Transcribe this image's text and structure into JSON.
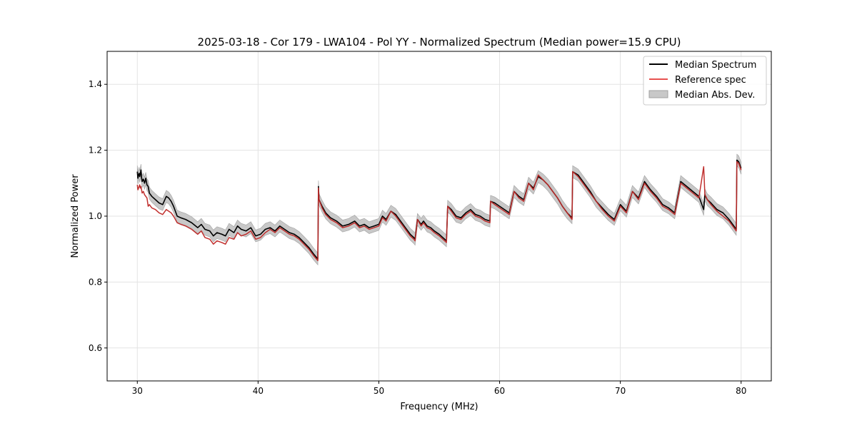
{
  "chart_data": {
    "type": "line",
    "title": "2025-03-18 - Cor 179 - LWA104 - Pol YY - Normalized Spectrum (Median power=15.9 CPU)",
    "xlabel": "Frequency (MHz)",
    "ylabel": "Normalized Power",
    "xlim": [
      27.5,
      82.5
    ],
    "ylim": [
      0.5,
      1.5
    ],
    "x_ticks": [
      30,
      40,
      50,
      60,
      70,
      80
    ],
    "y_ticks": [
      0.6,
      0.8,
      1.0,
      1.2,
      1.4
    ],
    "x_tick_labels": [
      "30",
      "40",
      "50",
      "60",
      "70",
      "80"
    ],
    "y_tick_labels": [
      "0.6",
      "0.8",
      "1.0",
      "1.2",
      "1.4"
    ],
    "grid": true,
    "legend_position": "top-right",
    "colors": {
      "median": "#000000",
      "reference": "#e8514f",
      "overlap": "#8b0000",
      "band_fill": "#c8c8c8",
      "band_edge": "#a0a0a0"
    },
    "series": [
      {
        "name": "Median Spectrum",
        "kind": "line",
        "x": [
          30.0,
          30.05,
          30.1,
          30.15,
          30.2,
          30.25,
          30.3,
          30.35,
          30.4,
          30.5,
          30.6,
          30.7,
          30.8,
          30.9,
          31.0,
          31.2,
          31.5,
          31.8,
          32.1,
          32.4,
          32.6,
          32.8,
          33.0,
          33.3,
          33.6,
          34.0,
          34.5,
          35.0,
          35.3,
          35.6,
          36.0,
          36.3,
          36.6,
          37.0,
          37.3,
          37.6,
          38.0,
          38.3,
          38.6,
          39.0,
          39.4,
          39.8,
          40.2,
          40.6,
          41.0,
          41.4,
          41.8,
          42.2,
          42.6,
          43.0,
          43.4,
          43.8,
          44.2,
          44.6,
          44.95,
          45.0,
          45.05,
          45.3,
          45.6,
          46.0,
          46.5,
          47.0,
          47.5,
          48.0,
          48.4,
          48.8,
          49.2,
          49.6,
          50.0,
          50.3,
          50.6,
          51.0,
          51.4,
          51.8,
          52.2,
          52.6,
          52.9,
          53.0,
          53.2,
          53.5,
          53.7,
          54.0,
          54.3,
          54.6,
          55.0,
          55.3,
          55.6,
          55.7,
          56.0,
          56.4,
          56.8,
          57.2,
          57.6,
          58.0,
          58.4,
          58.8,
          59.2,
          59.25,
          59.6,
          60.0,
          60.4,
          60.8,
          61.2,
          61.6,
          62.0,
          62.4,
          62.8,
          63.2,
          63.6,
          64.0,
          64.4,
          64.8,
          65.2,
          65.6,
          66.0,
          66.05,
          66.5,
          67.0,
          67.5,
          68.0,
          68.5,
          69.0,
          69.5,
          70.0,
          70.5,
          71.0,
          71.5,
          72.0,
          72.5,
          73.0,
          73.5,
          74.0,
          74.5,
          75.0,
          75.5,
          76.0,
          76.5,
          76.9,
          77.0,
          77.2,
          77.5,
          78.0,
          78.5,
          79.0,
          79.6,
          79.65,
          79.8,
          80.0
        ],
        "y": [
          1.135,
          1.115,
          1.125,
          1.13,
          1.12,
          1.128,
          1.14,
          1.118,
          1.105,
          1.112,
          1.1,
          1.115,
          1.095,
          1.09,
          1.07,
          1.06,
          1.05,
          1.04,
          1.035,
          1.06,
          1.055,
          1.045,
          1.03,
          1.0,
          0.995,
          0.99,
          0.98,
          0.965,
          0.975,
          0.96,
          0.955,
          0.94,
          0.95,
          0.945,
          0.94,
          0.96,
          0.95,
          0.97,
          0.96,
          0.955,
          0.965,
          0.94,
          0.945,
          0.96,
          0.965,
          0.955,
          0.97,
          0.96,
          0.95,
          0.945,
          0.935,
          0.92,
          0.905,
          0.885,
          0.87,
          1.09,
          1.05,
          1.03,
          1.01,
          0.995,
          0.985,
          0.97,
          0.975,
          0.985,
          0.97,
          0.975,
          0.965,
          0.97,
          0.975,
          1.0,
          0.99,
          1.015,
          1.005,
          0.985,
          0.965,
          0.945,
          0.935,
          0.93,
          0.99,
          0.975,
          0.985,
          0.97,
          0.965,
          0.955,
          0.945,
          0.935,
          0.925,
          1.03,
          1.02,
          1.0,
          0.995,
          1.01,
          1.02,
          1.005,
          1.0,
          0.99,
          0.985,
          1.045,
          1.04,
          1.03,
          1.02,
          1.01,
          1.075,
          1.06,
          1.05,
          1.1,
          1.085,
          1.12,
          1.11,
          1.095,
          1.075,
          1.055,
          1.03,
          1.01,
          0.995,
          1.135,
          1.125,
          1.1,
          1.075,
          1.045,
          1.025,
          1.005,
          0.99,
          1.035,
          1.015,
          1.075,
          1.055,
          1.105,
          1.08,
          1.06,
          1.035,
          1.025,
          1.01,
          1.105,
          1.09,
          1.075,
          1.06,
          1.02,
          1.065,
          1.05,
          1.04,
          1.02,
          1.01,
          0.99,
          0.96,
          1.17,
          1.165,
          1.145
        ]
      },
      {
        "name": "Reference spec",
        "kind": "line",
        "x": [
          30.0,
          30.05,
          30.1,
          30.15,
          30.2,
          30.25,
          30.3,
          30.35,
          30.4,
          30.5,
          30.6,
          30.7,
          30.8,
          30.9,
          31.0,
          31.2,
          31.5,
          31.8,
          32.1,
          32.4,
          32.6,
          32.8,
          33.0,
          33.3,
          33.6,
          34.0,
          34.5,
          35.0,
          35.3,
          35.6,
          36.0,
          36.3,
          36.6,
          37.0,
          37.3,
          37.6,
          38.0,
          38.3,
          38.6,
          39.0,
          39.4,
          39.8,
          40.2,
          40.6,
          41.0,
          41.4,
          41.8,
          42.2,
          42.6,
          43.0,
          43.4,
          43.8,
          44.2,
          44.6,
          44.95,
          45.0,
          45.05,
          45.3,
          45.6,
          46.0,
          46.5,
          47.0,
          47.5,
          48.0,
          48.4,
          48.8,
          49.2,
          49.6,
          50.0,
          50.3,
          50.6,
          51.0,
          51.4,
          51.8,
          52.2,
          52.6,
          52.9,
          53.0,
          53.2,
          53.5,
          53.7,
          54.0,
          54.3,
          54.6,
          55.0,
          55.3,
          55.6,
          55.7,
          56.0,
          56.4,
          56.8,
          57.2,
          57.6,
          58.0,
          58.4,
          58.8,
          59.2,
          59.25,
          59.6,
          60.0,
          60.4,
          60.8,
          61.2,
          61.6,
          62.0,
          62.4,
          62.8,
          63.2,
          63.6,
          64.0,
          64.4,
          64.8,
          65.2,
          65.6,
          66.0,
          66.05,
          66.5,
          67.0,
          67.5,
          68.0,
          68.5,
          69.0,
          69.5,
          70.0,
          70.5,
          71.0,
          71.5,
          72.0,
          72.5,
          73.0,
          73.5,
          74.0,
          74.5,
          75.0,
          75.5,
          76.0,
          76.5,
          76.9,
          77.0,
          77.2,
          77.5,
          78.0,
          78.5,
          79.0,
          79.6,
          79.65,
          79.8,
          80.0
        ],
        "y": [
          1.095,
          1.08,
          1.085,
          1.09,
          1.095,
          1.085,
          1.09,
          1.08,
          1.07,
          1.075,
          1.065,
          1.06,
          1.055,
          1.03,
          1.035,
          1.025,
          1.02,
          1.01,
          1.005,
          1.02,
          1.015,
          1.01,
          1.0,
          0.98,
          0.975,
          0.97,
          0.96,
          0.945,
          0.955,
          0.935,
          0.93,
          0.915,
          0.925,
          0.92,
          0.915,
          0.935,
          0.93,
          0.95,
          0.94,
          0.945,
          0.955,
          0.93,
          0.935,
          0.95,
          0.96,
          0.95,
          0.965,
          0.955,
          0.945,
          0.94,
          0.93,
          0.915,
          0.9,
          0.88,
          0.865,
          1.085,
          1.05,
          1.025,
          1.005,
          0.99,
          0.98,
          0.965,
          0.97,
          0.98,
          0.965,
          0.97,
          0.96,
          0.965,
          0.97,
          0.995,
          0.985,
          1.015,
          1.0,
          0.98,
          0.96,
          0.94,
          0.93,
          0.925,
          0.99,
          0.97,
          0.98,
          0.965,
          0.96,
          0.95,
          0.94,
          0.93,
          0.92,
          1.03,
          1.015,
          0.995,
          0.99,
          1.005,
          1.015,
          1.0,
          0.995,
          0.985,
          0.98,
          1.045,
          1.035,
          1.025,
          1.015,
          1.005,
          1.075,
          1.055,
          1.045,
          1.1,
          1.08,
          1.125,
          1.11,
          1.095,
          1.075,
          1.055,
          1.03,
          1.01,
          0.99,
          1.135,
          1.12,
          1.095,
          1.07,
          1.045,
          1.02,
          1.0,
          0.985,
          1.03,
          1.01,
          1.075,
          1.05,
          1.1,
          1.075,
          1.055,
          1.03,
          1.02,
          1.005,
          1.1,
          1.085,
          1.07,
          1.055,
          1.15,
          1.065,
          1.05,
          1.035,
          1.015,
          1.0,
          0.985,
          0.955,
          1.165,
          1.16,
          1.14
        ]
      },
      {
        "name": "Median Abs. Dev.",
        "kind": "band",
        "half_width": 0.018
      }
    ]
  }
}
